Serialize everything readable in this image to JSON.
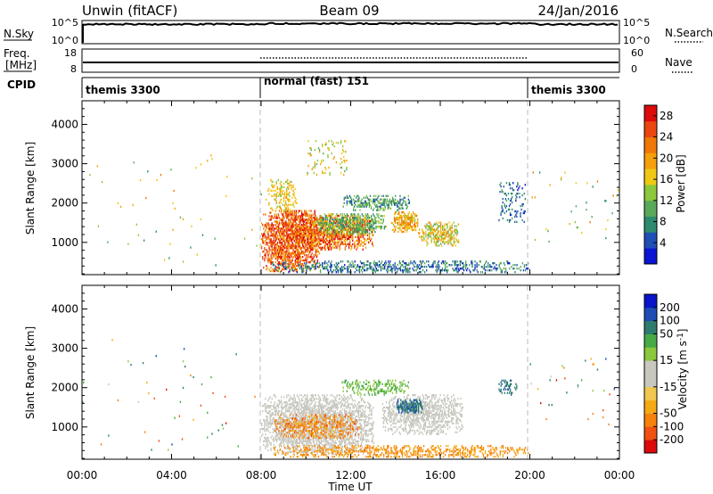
{
  "header": {
    "station": "Unwin (fitACF)",
    "beam": "Beam 09",
    "date": "24/Jan/2016"
  },
  "nsky_panel": {
    "left_label": "N.Sky",
    "right_label": "N.Search",
    "left_ticks": [
      "10^5",
      "10^0"
    ],
    "right_ticks": [
      "10^5",
      "10^0"
    ]
  },
  "freq_panel": {
    "left_label_line1": "Freq.",
    "left_label_line2": "[MHz]",
    "right_label": "Nave",
    "left_ticks": [
      "18",
      "8"
    ],
    "right_ticks": [
      "60",
      "0"
    ]
  },
  "cpid_panel": {
    "label": "CPID",
    "segments": [
      {
        "start_hour": 0,
        "end_hour": 8,
        "text": "themis 3300"
      },
      {
        "start_hour": 8,
        "end_hour": 20,
        "text": "normal (fast) 151"
      },
      {
        "start_hour": 20,
        "end_hour": 24,
        "text": "themis 3300"
      }
    ]
  },
  "chart_data": [
    {
      "type": "heatmap",
      "name": "power",
      "ylabel": "Slant Range [km]",
      "ylim": [
        180,
        4600
      ],
      "y_ticks": [
        1000,
        2000,
        3000,
        4000
      ],
      "xlim": [
        0,
        24
      ],
      "colorbar": {
        "label": "Power [dB]",
        "ticks": [
          "4",
          "8",
          "12",
          "16",
          "20",
          "24",
          "28"
        ],
        "tick_values": [
          4,
          8,
          12,
          16,
          20,
          24,
          28
        ],
        "range": [
          0,
          30
        ],
        "colors": [
          "#0a14d2",
          "#1f4fb4",
          "#2e8a6e",
          "#5aa85a",
          "#8cc83c",
          "#f0c814",
          "#f5a00a",
          "#f07808",
          "#eb4610",
          "#dc0a0a"
        ]
      },
      "regions": [
        {
          "t0": 8.0,
          "t1": 10.6,
          "r0": 250,
          "r1": 1800,
          "v0": 18,
          "v1": 30,
          "density": 0.78
        },
        {
          "t0": 9.4,
          "t1": 13.0,
          "r0": 800,
          "r1": 1700,
          "v0": 16,
          "v1": 30,
          "density": 0.7
        },
        {
          "t0": 10.4,
          "t1": 13.6,
          "r0": 1200,
          "r1": 1700,
          "v0": 6,
          "v1": 16,
          "density": 0.6
        },
        {
          "t0": 11.6,
          "t1": 14.6,
          "r0": 1800,
          "r1": 2200,
          "v0": 4,
          "v1": 14,
          "density": 0.55
        },
        {
          "t0": 8.2,
          "t1": 9.6,
          "r0": 1800,
          "r1": 2600,
          "v0": 14,
          "v1": 20,
          "density": 0.35
        },
        {
          "t0": 13.8,
          "t1": 15.0,
          "r0": 1250,
          "r1": 1750,
          "v0": 14,
          "v1": 24,
          "density": 0.75
        },
        {
          "t0": 15.0,
          "t1": 16.8,
          "r0": 900,
          "r1": 1500,
          "v0": 10,
          "v1": 22,
          "density": 0.6
        },
        {
          "t0": 8.5,
          "t1": 19.9,
          "r0": 180,
          "r1": 520,
          "v0": 2,
          "v1": 12,
          "density": 0.42
        },
        {
          "t0": 10.0,
          "t1": 11.8,
          "r0": 2700,
          "r1": 3600,
          "v0": 10,
          "v1": 20,
          "density": 0.08
        },
        {
          "t0": 18.6,
          "t1": 19.8,
          "r0": 1500,
          "r1": 2500,
          "v0": 2,
          "v1": 10,
          "density": 0.15
        },
        {
          "t0": 0.0,
          "t1": 8.0,
          "r0": 400,
          "r1": 3200,
          "v0": 6,
          "v1": 22,
          "density": 0.004
        },
        {
          "t0": 20.0,
          "t1": 24.0,
          "r0": 1000,
          "r1": 2800,
          "v0": 6,
          "v1": 22,
          "density": 0.01
        }
      ]
    },
    {
      "type": "heatmap",
      "name": "velocity",
      "ylabel": "Slant Range [km]",
      "ylim": [
        180,
        4600
      ],
      "y_ticks": [
        1000,
        2000,
        3000,
        4000
      ],
      "xlim": [
        0,
        24
      ],
      "xlabel": "Time UT",
      "x_ticks": [
        "00:00",
        "04:00",
        "08:00",
        "12:00",
        "16:00",
        "20:00",
        "00:00"
      ],
      "x_tick_values": [
        0,
        4,
        8,
        12,
        16,
        20,
        24
      ],
      "colorbar": {
        "label": "Velocity [m s^-1]",
        "ticks": [
          "-200",
          "-100",
          "-50",
          "-15",
          "15",
          "50",
          "100",
          "200"
        ],
        "tick_values": [
          -200,
          -100,
          -50,
          -15,
          15,
          50,
          100,
          200
        ],
        "colors": [
          "#dc0a0a",
          "#f05010",
          "#f5820a",
          "#f5aa14",
          "#f0c850",
          "#c8c8c0",
          "#c8c8c0",
          "#8cc83c",
          "#46aa46",
          "#2e7c6e",
          "#1e4cb4",
          "#0a14c8"
        ]
      },
      "regions": [
        {
          "t0": 8.0,
          "t1": 13.0,
          "r0": 300,
          "r1": 1800,
          "v0": -14,
          "v1": 14,
          "density": 0.72
        },
        {
          "t0": 8.6,
          "t1": 12.4,
          "r0": 700,
          "r1": 1300,
          "v0": -120,
          "v1": -20,
          "density": 0.4
        },
        {
          "t0": 13.4,
          "t1": 17.0,
          "r0": 800,
          "r1": 1800,
          "v0": -14,
          "v1": 14,
          "density": 0.6
        },
        {
          "t0": 14.0,
          "t1": 15.2,
          "r0": 1350,
          "r1": 1700,
          "v0": 120,
          "v1": 240,
          "density": 0.8
        },
        {
          "t0": 11.6,
          "t1": 14.6,
          "r0": 1800,
          "r1": 2200,
          "v0": 20,
          "v1": 80,
          "density": 0.4
        },
        {
          "t0": 8.5,
          "t1": 19.9,
          "r0": 180,
          "r1": 520,
          "v0": -90,
          "v1": -20,
          "density": 0.45
        },
        {
          "t0": 18.6,
          "t1": 19.4,
          "r0": 1800,
          "r1": 2200,
          "v0": 100,
          "v1": 240,
          "density": 0.35
        },
        {
          "t0": 0.0,
          "t1": 8.0,
          "r0": 400,
          "r1": 3200,
          "v0": -220,
          "v1": 220,
          "density": 0.004
        },
        {
          "t0": 20.0,
          "t1": 24.0,
          "r0": 1000,
          "r1": 2800,
          "v0": -220,
          "v1": 220,
          "density": 0.01
        }
      ]
    }
  ]
}
